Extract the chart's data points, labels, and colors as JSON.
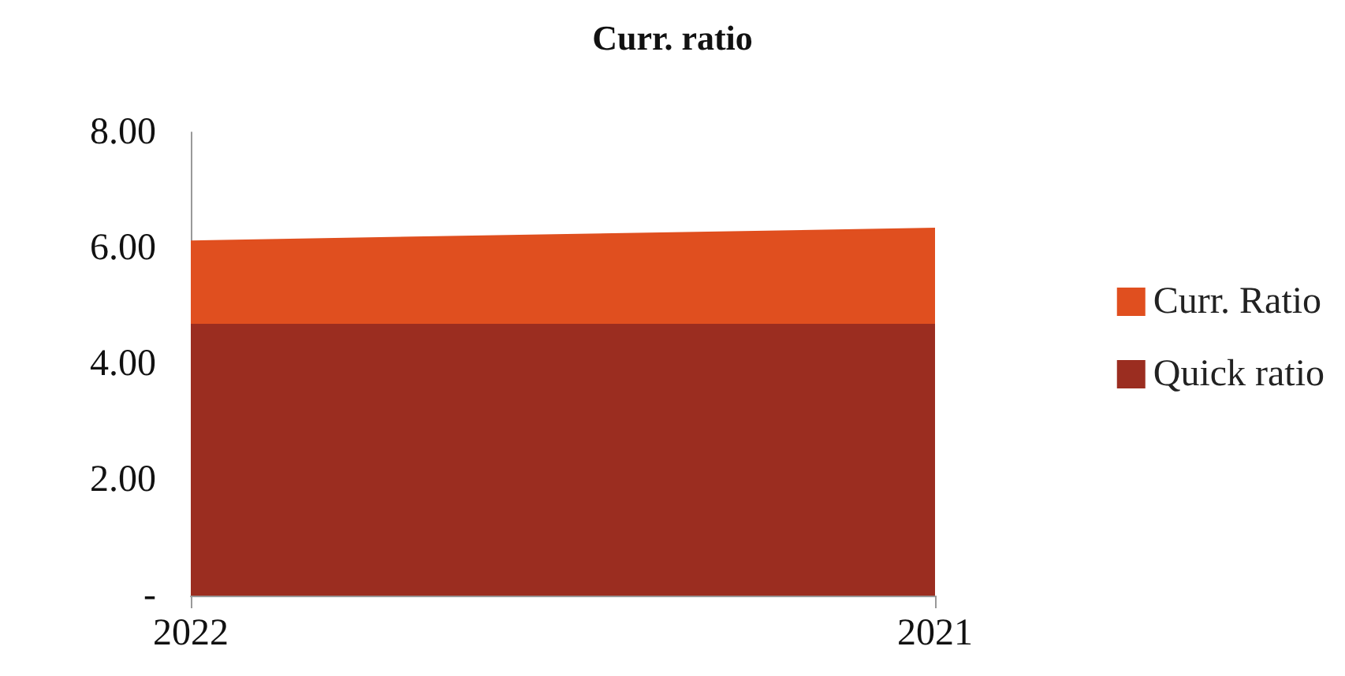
{
  "chart_data": {
    "type": "area",
    "title": "Curr. ratio",
    "x": [
      2022,
      2021
    ],
    "series": [
      {
        "name": "Curr. Ratio",
        "color": "#e04f1f",
        "values": [
          6.12,
          6.34
        ]
      },
      {
        "name": "Quick ratio",
        "color": "#9b2d20",
        "values": [
          4.68,
          4.68
        ]
      }
    ],
    "xlim": [
      2022,
      2021
    ],
    "xticks": [
      2022,
      2021
    ],
    "ylim": [
      0,
      8
    ],
    "yticks": [
      {
        "value": 0,
        "label": "-"
      },
      {
        "value": 2,
        "label": "2.00"
      },
      {
        "value": 4,
        "label": "4.00"
      },
      {
        "value": 6,
        "label": "6.00"
      },
      {
        "value": 8,
        "label": "8.00"
      }
    ],
    "grid": false,
    "legend": "right",
    "marker": "none"
  }
}
